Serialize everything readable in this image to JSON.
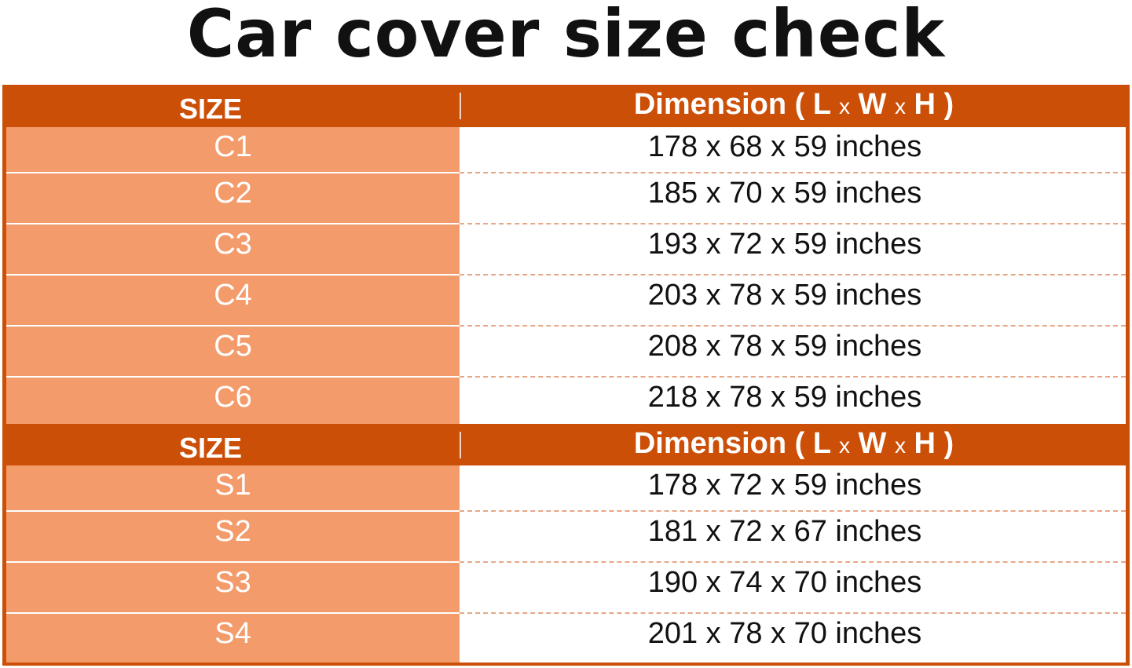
{
  "title": "Car cover size check",
  "header": {
    "size": "SIZE",
    "dimension": "Dimension (",
    "l": "L",
    "x1": "x",
    "w": "W",
    "x2": "x",
    "h": "H",
    "close": ")"
  },
  "c_rows": [
    {
      "size": "C1",
      "dimension": "178 x 68 x 59 inches"
    },
    {
      "size": "C2",
      "dimension": "185 x 70 x 59 inches"
    },
    {
      "size": "C3",
      "dimension": "193 x 72 x 59 inches"
    },
    {
      "size": "C4",
      "dimension": "203 x 78 x 59 inches"
    },
    {
      "size": "C5",
      "dimension": "208 x 78 x 59 inches"
    },
    {
      "size": "C6",
      "dimension": "218 x 78 x 59 inches"
    }
  ],
  "s_rows": [
    {
      "size": "S1",
      "dimension": "178 x 72 x 59 inches"
    },
    {
      "size": "S2",
      "dimension": "181 x 72 x 67 inches"
    },
    {
      "size": "S3",
      "dimension": "190 x 74 x 70 inches"
    },
    {
      "size": "S4",
      "dimension": "201 x 78 x 70 inches"
    }
  ],
  "colors": {
    "header": "#CC4F08",
    "size_cell": "#F49B6B"
  }
}
